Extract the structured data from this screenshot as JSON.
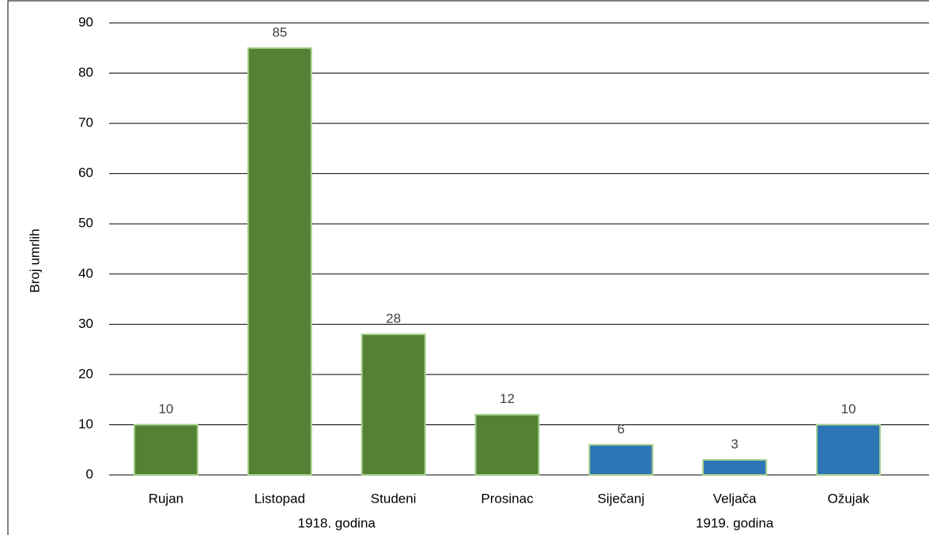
{
  "chart_data": {
    "type": "bar",
    "y_label": "Broj umrlih",
    "categories": [
      "Rujan",
      "Listopad",
      "Studeni",
      "Prosinac",
      "Siječanj",
      "Veljača",
      "Ožujak"
    ],
    "series": [
      {
        "name": "1918. godina",
        "color": "#548235",
        "values": [
          10,
          85,
          28,
          12,
          null,
          null,
          null
        ]
      },
      {
        "name": "1919. godina",
        "color": "#2e75b6",
        "values": [
          null,
          null,
          null,
          null,
          6,
          3,
          10
        ]
      }
    ],
    "ylim": [
      0,
      90
    ],
    "yticks": [
      0,
      10,
      20,
      30,
      40,
      50,
      60,
      70,
      80,
      90
    ],
    "grid": true
  }
}
